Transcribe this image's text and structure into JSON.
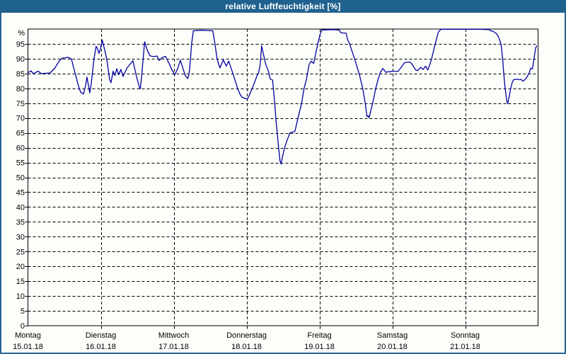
{
  "window": {
    "title": "relative Luftfeuchtigkeit [%]"
  },
  "colors": {
    "titlebar": "#1F618F",
    "border": "#266494",
    "line": "#0000A0",
    "grid": "#000000",
    "frame": "#000000",
    "background": "#FCFEFA",
    "text": "#000000"
  },
  "chart_data": {
    "type": "line",
    "title": "relative Luftfeuchtigkeit [%]",
    "unit_label": "%",
    "ylim": [
      0,
      100
    ],
    "y_ticks": [
      0,
      5,
      10,
      15,
      20,
      25,
      30,
      35,
      40,
      45,
      50,
      55,
      60,
      65,
      70,
      75,
      80,
      85,
      90,
      95
    ],
    "x_range_days": [
      0,
      7
    ],
    "grid": "dashed",
    "legend": "none",
    "x_days": [
      {
        "name": "Montag",
        "date": "15.01.18"
      },
      {
        "name": "Dienstag",
        "date": "16.01.18"
      },
      {
        "name": "Mittwoch",
        "date": "17.01.18"
      },
      {
        "name": "Donnerstag",
        "date": "18.01.18"
      },
      {
        "name": "Freitag",
        "date": "19.01.18"
      },
      {
        "name": "Samstag",
        "date": "20.01.18"
      },
      {
        "name": "Sonntag",
        "date": "21.01.18"
      }
    ],
    "series": [
      {
        "name": "relative Luftfeuchtigkeit",
        "color": "#0000A0",
        "points": [
          [
            0.0,
            85.3
          ],
          [
            0.024,
            85.6
          ],
          [
            0.044,
            85.9
          ],
          [
            0.073,
            84.9
          ],
          [
            0.102,
            85.3
          ],
          [
            0.141,
            85.8
          ],
          [
            0.18,
            85.0
          ],
          [
            0.257,
            85.1
          ],
          [
            0.306,
            85.2
          ],
          [
            0.374,
            87.0
          ],
          [
            0.422,
            89.0
          ],
          [
            0.471,
            90.2
          ],
          [
            0.519,
            90.3
          ],
          [
            0.548,
            90.5
          ],
          [
            0.597,
            89.9
          ],
          [
            0.626,
            87.0
          ],
          [
            0.665,
            83.5
          ],
          [
            0.694,
            80.7
          ],
          [
            0.723,
            78.7
          ],
          [
            0.762,
            78.1
          ],
          [
            0.791,
            81.0
          ],
          [
            0.81,
            83.8
          ],
          [
            0.83,
            81.0
          ],
          [
            0.849,
            78.5
          ],
          [
            0.868,
            81.5
          ],
          [
            0.888,
            86.0
          ],
          [
            0.907,
            90.0
          ],
          [
            0.936,
            94.2
          ],
          [
            0.956,
            93.2
          ],
          [
            0.975,
            91.8
          ],
          [
            0.994,
            93.3
          ],
          [
            1.019,
            96.3
          ],
          [
            1.053,
            92.9
          ],
          [
            1.082,
            89.8
          ],
          [
            1.121,
            83.0
          ],
          [
            1.14,
            81.9
          ],
          [
            1.169,
            85.8
          ],
          [
            1.193,
            84.3
          ],
          [
            1.218,
            86.6
          ],
          [
            1.247,
            84.6
          ],
          [
            1.276,
            86.4
          ],
          [
            1.305,
            84.0
          ],
          [
            1.363,
            87.0
          ],
          [
            1.441,
            89.3
          ],
          [
            1.489,
            84.0
          ],
          [
            1.533,
            80.1
          ],
          [
            1.543,
            79.9
          ],
          [
            1.567,
            86.0
          ],
          [
            1.601,
            95.7
          ],
          [
            1.635,
            93.0
          ],
          [
            1.674,
            91.0
          ],
          [
            1.722,
            90.7
          ],
          [
            1.771,
            90.9
          ],
          [
            1.8,
            89.4
          ],
          [
            1.838,
            90.3
          ],
          [
            1.887,
            90.8
          ],
          [
            1.945,
            88.0
          ],
          [
            1.974,
            86.2
          ],
          [
            1.989,
            85.8
          ],
          [
            2.013,
            84.5
          ],
          [
            2.052,
            86.5
          ],
          [
            2.091,
            89.5
          ],
          [
            2.13,
            86.5
          ],
          [
            2.159,
            84.3
          ],
          [
            2.193,
            83.3
          ],
          [
            2.212,
            85.0
          ],
          [
            2.231,
            90.0
          ],
          [
            2.246,
            95.0
          ],
          [
            2.27,
            99.4
          ],
          [
            2.382,
            99.6
          ],
          [
            2.459,
            99.5
          ],
          [
            2.537,
            99.4
          ],
          [
            2.566,
            95.0
          ],
          [
            2.595,
            90.0
          ],
          [
            2.634,
            86.9
          ],
          [
            2.682,
            89.6
          ],
          [
            2.721,
            87.5
          ],
          [
            2.755,
            89.2
          ],
          [
            2.813,
            85.0
          ],
          [
            2.847,
            82.4
          ],
          [
            2.877,
            80.0
          ],
          [
            2.911,
            78.0
          ],
          [
            2.94,
            77.0
          ],
          [
            2.974,
            76.6
          ],
          [
            3.013,
            76.4
          ],
          [
            3.061,
            79.0
          ],
          [
            3.11,
            82.0
          ],
          [
            3.144,
            84.3
          ],
          [
            3.163,
            85.0
          ],
          [
            3.187,
            88.0
          ],
          [
            3.207,
            94.3
          ],
          [
            3.236,
            91.0
          ],
          [
            3.265,
            88.0
          ],
          [
            3.304,
            85.5
          ],
          [
            3.323,
            83.2
          ],
          [
            3.357,
            82.8
          ],
          [
            3.386,
            75.0
          ],
          [
            3.401,
            70.0
          ],
          [
            3.42,
            65.0
          ],
          [
            3.44,
            60.0
          ],
          [
            3.459,
            55.5
          ],
          [
            3.473,
            54.5
          ],
          [
            3.493,
            57.0
          ],
          [
            3.522,
            60.0
          ],
          [
            3.556,
            62.5
          ],
          [
            3.595,
            65.0
          ],
          [
            3.663,
            65.5
          ],
          [
            3.706,
            70.0
          ],
          [
            3.755,
            75.0
          ],
          [
            3.789,
            80.0
          ],
          [
            3.823,
            83.2
          ],
          [
            3.857,
            88.0
          ],
          [
            3.886,
            89.2
          ],
          [
            3.92,
            88.4
          ],
          [
            3.964,
            93.5
          ],
          [
            3.983,
            95.5
          ],
          [
            4.007,
            98.0
          ],
          [
            4.031,
            99.7
          ],
          [
            4.177,
            99.8
          ],
          [
            4.274,
            99.7
          ],
          [
            4.293,
            98.7
          ],
          [
            4.366,
            98.6
          ],
          [
            4.385,
            96.5
          ],
          [
            4.414,
            95.0
          ],
          [
            4.482,
            90.0
          ],
          [
            4.545,
            85.0
          ],
          [
            4.594,
            80.0
          ],
          [
            4.628,
            75.0
          ],
          [
            4.652,
            70.5
          ],
          [
            4.667,
            70.8
          ],
          [
            4.681,
            70.1
          ],
          [
            4.73,
            75.0
          ],
          [
            4.773,
            80.0
          ],
          [
            4.807,
            83.2
          ],
          [
            4.836,
            85.4
          ],
          [
            4.87,
            86.7
          ],
          [
            4.914,
            85.4
          ],
          [
            4.943,
            85.6
          ],
          [
            4.972,
            85.6
          ],
          [
            5.001,
            85.8
          ],
          [
            5.079,
            85.7
          ],
          [
            5.118,
            87.0
          ],
          [
            5.166,
            88.6
          ],
          [
            5.186,
            88.8
          ],
          [
            5.244,
            88.8
          ],
          [
            5.263,
            88.4
          ],
          [
            5.321,
            86.2
          ],
          [
            5.35,
            86.0
          ],
          [
            5.389,
            87.1
          ],
          [
            5.423,
            86.4
          ],
          [
            5.457,
            87.5
          ],
          [
            5.486,
            86.2
          ],
          [
            5.515,
            88.0
          ],
          [
            5.54,
            90.0
          ],
          [
            5.588,
            95.0
          ],
          [
            5.632,
            99.0
          ],
          [
            5.666,
            99.9
          ],
          [
            5.826,
            99.9
          ],
          [
            6.02,
            99.9
          ],
          [
            6.214,
            99.9
          ],
          [
            6.331,
            99.8
          ],
          [
            6.355,
            99.3
          ],
          [
            6.379,
            99.3
          ],
          [
            6.408,
            98.8
          ],
          [
            6.432,
            98.4
          ],
          [
            6.457,
            97.3
          ],
          [
            6.491,
            95.0
          ],
          [
            6.515,
            90.0
          ],
          [
            6.529,
            85.0
          ],
          [
            6.549,
            80.0
          ],
          [
            6.573,
            75.5
          ],
          [
            6.583,
            74.9
          ],
          [
            6.602,
            77.0
          ],
          [
            6.622,
            79.7
          ],
          [
            6.646,
            82.0
          ],
          [
            6.665,
            82.9
          ],
          [
            6.689,
            83.0
          ],
          [
            6.709,
            83.1
          ],
          [
            6.748,
            82.9
          ],
          [
            6.767,
            83.0
          ],
          [
            6.796,
            82.4
          ],
          [
            6.84,
            83.5
          ],
          [
            6.879,
            85.2
          ],
          [
            6.898,
            86.8
          ],
          [
            6.923,
            86.6
          ],
          [
            6.947,
            90.4
          ],
          [
            6.966,
            93.5
          ],
          [
            6.981,
            94.3
          ]
        ]
      }
    ]
  }
}
